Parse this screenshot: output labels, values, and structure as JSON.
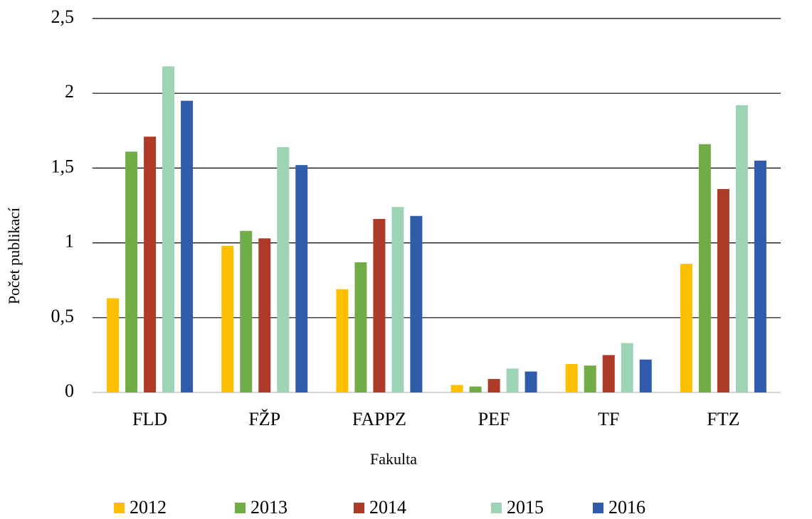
{
  "chart_data": {
    "type": "bar",
    "categories": [
      "FLD",
      "FŽP",
      "FAPPZ",
      "PEF",
      "TF",
      "FTZ"
    ],
    "series": [
      {
        "name": "2012",
        "color": "#ffc000",
        "values": [
          0.63,
          0.98,
          0.69,
          0.05,
          0.19,
          0.86
        ]
      },
      {
        "name": "2013",
        "color": "#70ad47",
        "values": [
          1.61,
          1.08,
          0.87,
          0.04,
          0.18,
          1.66
        ]
      },
      {
        "name": "2014",
        "color": "#ae3b28",
        "values": [
          1.71,
          1.03,
          1.16,
          0.09,
          0.25,
          1.36
        ]
      },
      {
        "name": "2015",
        "color": "#9dd4b5",
        "values": [
          2.18,
          1.64,
          1.24,
          0.16,
          0.33,
          1.92
        ]
      },
      {
        "name": "2016",
        "color": "#2f5dab",
        "values": [
          1.95,
          1.52,
          1.18,
          0.14,
          0.22,
          1.55
        ]
      }
    ],
    "xlabel": "Fakulta",
    "ylabel": "Počet publikací",
    "ylim": [
      0,
      2.5
    ],
    "yticks": [
      0,
      {
        "value": 0.5,
        "label": "0,5"
      },
      1,
      {
        "value": 1.5,
        "label": "1,5"
      },
      2,
      {
        "value": 2.5,
        "label": "2,5"
      }
    ],
    "grid": true,
    "legend": "bottom"
  }
}
